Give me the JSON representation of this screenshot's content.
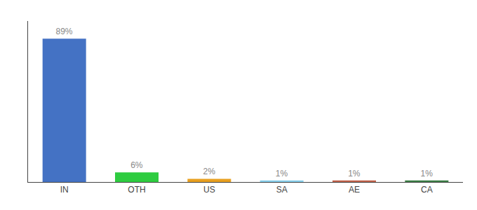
{
  "chart_data": {
    "type": "bar",
    "categories": [
      "IN",
      "OTH",
      "US",
      "SA",
      "AE",
      "CA"
    ],
    "values": [
      89,
      6,
      2,
      1,
      1,
      1
    ],
    "value_labels": [
      "89%",
      "6%",
      "2%",
      "1%",
      "1%",
      "1%"
    ],
    "colors": [
      "#4472C4",
      "#2ECC40",
      "#E8A020",
      "#87CEEB",
      "#C0614A",
      "#3A7D44"
    ],
    "ylim": [
      0,
      100
    ],
    "data_labels": true,
    "tick_labels": "x",
    "grid": false
  }
}
